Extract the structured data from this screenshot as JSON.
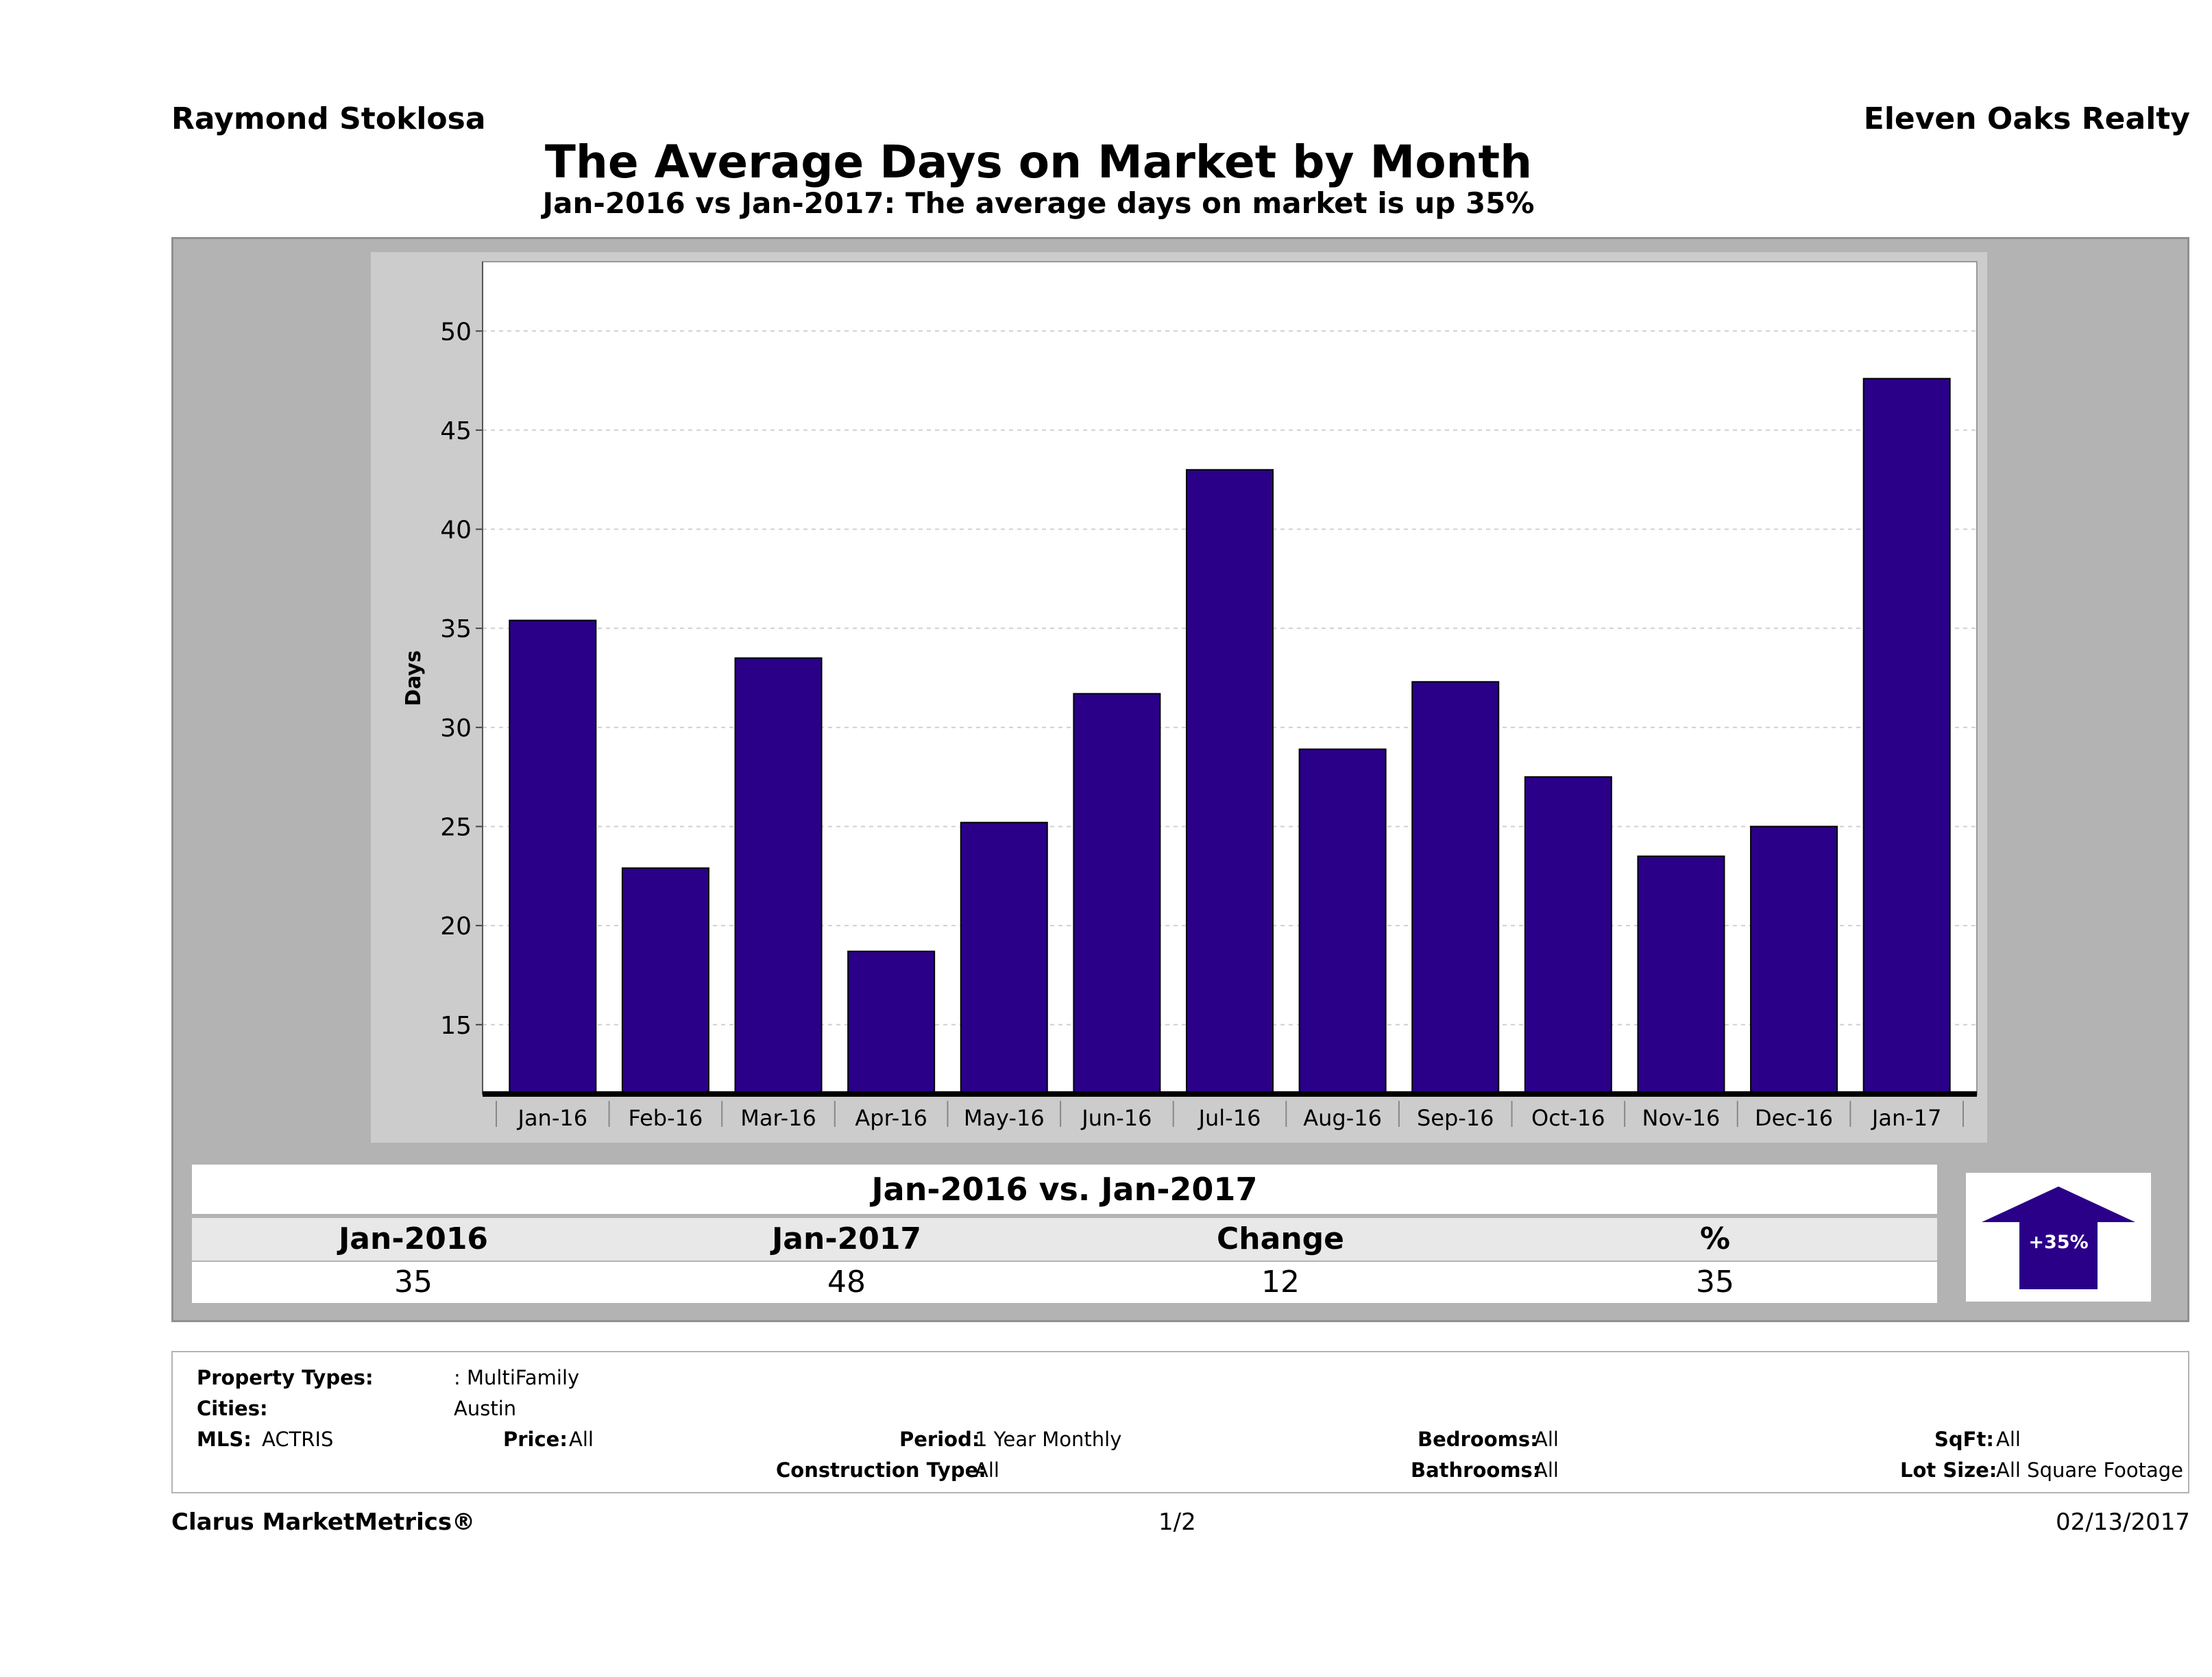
{
  "header": {
    "agent": "Raymond Stoklosa",
    "company": "Eleven Oaks Realty",
    "title": "The Average Days on Market by Month",
    "subtitle": "Jan-2016 vs Jan-2017: The average days on market is up 35%"
  },
  "chart_data": {
    "type": "bar",
    "categories": [
      "Jan-16",
      "Feb-16",
      "Mar-16",
      "Apr-16",
      "May-16",
      "Jun-16",
      "Jul-16",
      "Aug-16",
      "Sep-16",
      "Oct-16",
      "Nov-16",
      "Dec-16",
      "Jan-17"
    ],
    "values": [
      35.4,
      22.9,
      33.5,
      18.7,
      25.2,
      31.7,
      43.0,
      28.9,
      32.3,
      27.5,
      23.5,
      25.0,
      47.6
    ],
    "ylabel": "Days",
    "xlabel": "",
    "ylim": [
      11.5,
      53.5
    ],
    "yticks": [
      15,
      20,
      25,
      30,
      35,
      40,
      45,
      50
    ],
    "grid": true,
    "colors": {
      "bar": "#2a0088",
      "plot_bg": "#ffffff",
      "panel_bg": "#cccccc",
      "grid": "#d0d0d0"
    }
  },
  "comparison": {
    "heading": "Jan-2016 vs. Jan-2017",
    "labels": [
      "Jan-2016",
      "Jan-2017",
      "Change",
      "%"
    ],
    "values": [
      "35",
      "48",
      "12",
      "35"
    ],
    "badge": "+35%",
    "badge_icon": "up-arrow-icon"
  },
  "criteria": {
    "property_types_label": "Property Types:",
    "property_types_value": ": MultiFamily",
    "cities_label": "Cities:",
    "cities_value": "Austin",
    "mls_label": "MLS:",
    "mls_value": "ACTRIS",
    "price_label": "Price:",
    "price_value": "All",
    "period_label": "Period:",
    "period_value": "1 Year Monthly",
    "construction_label": "Construction Type:",
    "construction_value": "All",
    "bedrooms_label": "Bedrooms:",
    "bedrooms_value": "All",
    "bathrooms_label": "Bathrooms:",
    "bathrooms_value": "All",
    "sqft_label": "SqFt:",
    "sqft_value": "All",
    "lotsize_label": "Lot Size:",
    "lotsize_value": "All Square Footage"
  },
  "footer": {
    "brand": "Clarus MarketMetrics®",
    "page": "1/2",
    "date": "02/13/2017"
  }
}
